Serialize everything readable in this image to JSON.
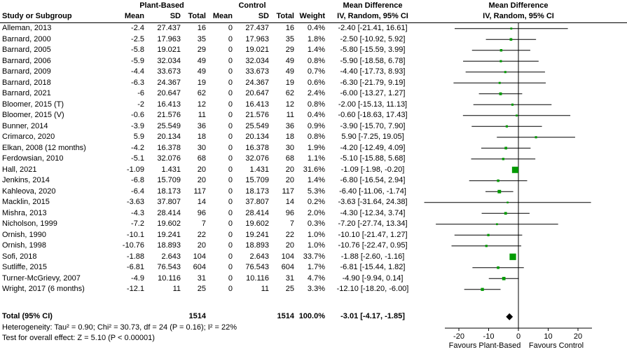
{
  "header": {
    "group1": "Plant-Based",
    "group2": "Control",
    "md_label": "Mean Difference",
    "columns": {
      "study": "Study or Subgroup",
      "mean": "Mean",
      "sd": "SD",
      "total": "Total",
      "weight": "Weight",
      "ci": "IV, Random, 95% CI"
    }
  },
  "footer": {
    "total_label": "Total (95% CI)",
    "total_n1": "1514",
    "total_n2": "1514",
    "total_weight": "100.0%",
    "total_ci": "-3.01 [-4.17, -1.85]",
    "heterogeneity": "Heterogeneity: Tau² = 0.90; Chi² = 30.73, df = 24 (P = 0.16); I² = 22%",
    "overall_effect": "Test for overall effect: Z = 5.10 (P < 0.00001)"
  },
  "axis": {
    "ticks": [
      -20,
      -10,
      0,
      10,
      20
    ],
    "xlim": [
      -33,
      35
    ],
    "favours_left": "Favours Plant-Based",
    "favours_right": "Favours Control"
  },
  "colors": {
    "marker": "#009a00",
    "diamond": "#000000",
    "line": "#000000"
  },
  "chart_data": {
    "type": "forest",
    "effect_measure": "Mean Difference, IV, Random, 95% CI",
    "total": {
      "md": -3.01,
      "lo": -4.17,
      "hi": -1.85
    },
    "studies": [
      {
        "name": "Alleman, 2013",
        "m1": "-2.4",
        "sd1": "27.437",
        "n1": "16",
        "m2": "0",
        "sd2": "27.437",
        "n2": "16",
        "w": "0.4%",
        "weight": 0.4,
        "md": -2.4,
        "lo": -21.41,
        "hi": 16.61,
        "ci": "-2.40 [-21.41, 16.61]"
      },
      {
        "name": "Barnard, 2000",
        "m1": "-2.5",
        "sd1": "17.963",
        "n1": "35",
        "m2": "0",
        "sd2": "17.963",
        "n2": "35",
        "w": "1.8%",
        "weight": 1.8,
        "md": -2.5,
        "lo": -10.92,
        "hi": 5.92,
        "ci": "-2.50 [-10.92, 5.92]"
      },
      {
        "name": "Barnard, 2005",
        "m1": "-5.8",
        "sd1": "19.021",
        "n1": "29",
        "m2": "0",
        "sd2": "19.021",
        "n2": "29",
        "w": "1.4%",
        "weight": 1.4,
        "md": -5.8,
        "lo": -15.59,
        "hi": 3.99,
        "ci": "-5.80 [-15.59, 3.99]"
      },
      {
        "name": "Barnard, 2006",
        "m1": "-5.9",
        "sd1": "32.034",
        "n1": "49",
        "m2": "0",
        "sd2": "32.034",
        "n2": "49",
        "w": "0.8%",
        "weight": 0.8,
        "md": -5.9,
        "lo": -18.58,
        "hi": 6.78,
        "ci": "-5.90 [-18.58, 6.78]"
      },
      {
        "name": "Barnard, 2009",
        "m1": "-4.4",
        "sd1": "33.673",
        "n1": "49",
        "m2": "0",
        "sd2": "33.673",
        "n2": "49",
        "w": "0.7%",
        "weight": 0.7,
        "md": -4.4,
        "lo": -17.73,
        "hi": 8.93,
        "ci": "-4.40 [-17.73, 8.93]"
      },
      {
        "name": "Barnard, 2018",
        "m1": "-6.3",
        "sd1": "24.367",
        "n1": "19",
        "m2": "0",
        "sd2": "24.367",
        "n2": "19",
        "w": "0.6%",
        "weight": 0.6,
        "md": -6.3,
        "lo": -21.79,
        "hi": 9.19,
        "ci": "-6.30 [-21.79, 9.19]"
      },
      {
        "name": "Barnard, 2021",
        "m1": "-6",
        "sd1": "20.647",
        "n1": "62",
        "m2": "0",
        "sd2": "20.647",
        "n2": "62",
        "w": "2.4%",
        "weight": 2.4,
        "md": -6.0,
        "lo": -13.27,
        "hi": 1.27,
        "ci": "-6.00 [-13.27, 1.27]"
      },
      {
        "name": "Bloomer, 2015 (T)",
        "m1": "-2",
        "sd1": "16.413",
        "n1": "12",
        "m2": "0",
        "sd2": "16.413",
        "n2": "12",
        "w": "0.8%",
        "weight": 0.8,
        "md": -2.0,
        "lo": -15.13,
        "hi": 11.13,
        "ci": "-2.00 [-15.13, 11.13]"
      },
      {
        "name": "Bloomer, 2015 (V)",
        "m1": "-0.6",
        "sd1": "21.576",
        "n1": "11",
        "m2": "0",
        "sd2": "21.576",
        "n2": "11",
        "w": "0.4%",
        "weight": 0.4,
        "md": -0.6,
        "lo": -18.63,
        "hi": 17.43,
        "ci": "-0.60 [-18.63, 17.43]"
      },
      {
        "name": "Bunner, 2014",
        "m1": "-3.9",
        "sd1": "25.549",
        "n1": "36",
        "m2": "0",
        "sd2": "25.549",
        "n2": "36",
        "w": "0.9%",
        "weight": 0.9,
        "md": -3.9,
        "lo": -15.7,
        "hi": 7.9,
        "ci": "-3.90 [-15.70, 7.90]"
      },
      {
        "name": "Crimarco, 2020",
        "m1": "5.9",
        "sd1": "20.134",
        "n1": "18",
        "m2": "0",
        "sd2": "20.134",
        "n2": "18",
        "w": "0.8%",
        "weight": 0.8,
        "md": 5.9,
        "lo": -7.25,
        "hi": 19.05,
        "ci": "5.90 [-7.25, 19.05]"
      },
      {
        "name": "Elkan, 2008 (12 months)",
        "m1": "-4.2",
        "sd1": "16.378",
        "n1": "30",
        "m2": "0",
        "sd2": "16.378",
        "n2": "30",
        "w": "1.9%",
        "weight": 1.9,
        "md": -4.2,
        "lo": -12.49,
        "hi": 4.09,
        "ci": "-4.20 [-12.49, 4.09]"
      },
      {
        "name": "Ferdowsian, 2010",
        "m1": "-5.1",
        "sd1": "32.076",
        "n1": "68",
        "m2": "0",
        "sd2": "32.076",
        "n2": "68",
        "w": "1.1%",
        "weight": 1.1,
        "md": -5.1,
        "lo": -15.88,
        "hi": 5.68,
        "ci": "-5.10 [-15.88, 5.68]"
      },
      {
        "name": "Hall, 2021",
        "m1": "-1.09",
        "sd1": "1.431",
        "n1": "20",
        "m2": "0",
        "sd2": "1.431",
        "n2": "20",
        "w": "31.6%",
        "weight": 31.6,
        "md": -1.09,
        "lo": -1.98,
        "hi": -0.2,
        "ci": "-1.09 [-1.98, -0.20]"
      },
      {
        "name": "Jenkins, 2014",
        "m1": "-6.8",
        "sd1": "15.709",
        "n1": "20",
        "m2": "0",
        "sd2": "15.709",
        "n2": "20",
        "w": "1.4%",
        "weight": 1.4,
        "md": -6.8,
        "lo": -16.54,
        "hi": 2.94,
        "ci": "-6.80 [-16.54, 2.94]"
      },
      {
        "name": "Kahleova, 2020",
        "m1": "-6.4",
        "sd1": "18.173",
        "n1": "117",
        "m2": "0",
        "sd2": "18.173",
        "n2": "117",
        "w": "5.3%",
        "weight": 5.3,
        "md": -6.4,
        "lo": -11.06,
        "hi": -1.74,
        "ci": "-6.40 [-11.06, -1.74]"
      },
      {
        "name": "Macklin, 2015",
        "m1": "-3.63",
        "sd1": "37.807",
        "n1": "14",
        "m2": "0",
        "sd2": "37.807",
        "n2": "14",
        "w": "0.2%",
        "weight": 0.2,
        "md": -3.63,
        "lo": -31.64,
        "hi": 24.38,
        "ci": "-3.63 [-31.64, 24.38]"
      },
      {
        "name": "Mishra, 2013",
        "m1": "-4.3",
        "sd1": "28.414",
        "n1": "96",
        "m2": "0",
        "sd2": "28.414",
        "n2": "96",
        "w": "2.0%",
        "weight": 2.0,
        "md": -4.3,
        "lo": -12.34,
        "hi": 3.74,
        "ci": "-4.30 [-12.34, 3.74]"
      },
      {
        "name": "Nicholson, 1999",
        "m1": "-7.2",
        "sd1": "19.602",
        "n1": "7",
        "m2": "0",
        "sd2": "19.602",
        "n2": "7",
        "w": "0.3%",
        "weight": 0.3,
        "md": -7.2,
        "lo": -27.74,
        "hi": 13.34,
        "ci": "-7.20 [-27.74, 13.34]"
      },
      {
        "name": "Ornish, 1990",
        "m1": "-10.1",
        "sd1": "19.241",
        "n1": "22",
        "m2": "0",
        "sd2": "19.241",
        "n2": "22",
        "w": "1.0%",
        "weight": 1.0,
        "md": -10.1,
        "lo": -21.47,
        "hi": 1.27,
        "ci": "-10.10 [-21.47, 1.27]"
      },
      {
        "name": "Ornish, 1998",
        "m1": "-10.76",
        "sd1": "18.893",
        "n1": "20",
        "m2": "0",
        "sd2": "18.893",
        "n2": "20",
        "w": "1.0%",
        "weight": 1.0,
        "md": -10.76,
        "lo": -22.47,
        "hi": 0.95,
        "ci": "-10.76 [-22.47, 0.95]"
      },
      {
        "name": "Sofi, 2018",
        "m1": "-1.88",
        "sd1": "2.643",
        "n1": "104",
        "m2": "0",
        "sd2": "2.643",
        "n2": "104",
        "w": "33.7%",
        "weight": 33.7,
        "md": -1.88,
        "lo": -2.6,
        "hi": -1.16,
        "ci": "-1.88 [-2.60, -1.16]"
      },
      {
        "name": "Sutliffe, 2015",
        "m1": "-6.81",
        "sd1": "76.543",
        "n1": "604",
        "m2": "0",
        "sd2": "76.543",
        "n2": "604",
        "w": "1.7%",
        "weight": 1.7,
        "md": -6.81,
        "lo": -15.44,
        "hi": 1.82,
        "ci": "-6.81 [-15.44, 1.82]"
      },
      {
        "name": "Turner-McGrievy, 2007",
        "m1": "-4.9",
        "sd1": "10.116",
        "n1": "31",
        "m2": "0",
        "sd2": "10.116",
        "n2": "31",
        "w": "4.7%",
        "weight": 4.7,
        "md": -4.9,
        "lo": -9.94,
        "hi": 0.14,
        "ci": "-4.90 [-9.94, 0.14]"
      },
      {
        "name": "Wright, 2017 (6 months)",
        "m1": "-12.1",
        "sd1": "11",
        "n1": "25",
        "m2": "0",
        "sd2": "11",
        "n2": "25",
        "w": "3.3%",
        "weight": 3.3,
        "md": -12.1,
        "lo": -18.2,
        "hi": -6.0,
        "ci": "-12.10 [-18.20, -6.00]"
      }
    ]
  }
}
